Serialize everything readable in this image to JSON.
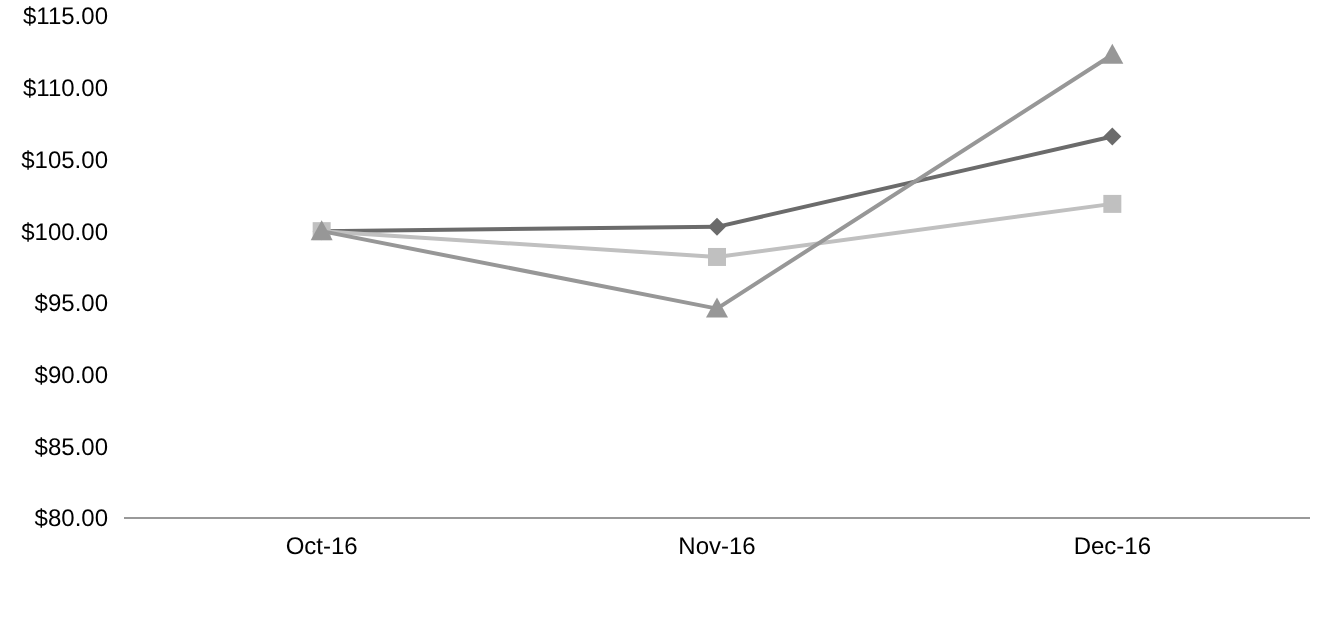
{
  "chart_data": {
    "type": "line",
    "categories": [
      "Oct-16",
      "Nov-16",
      "Dec-16"
    ],
    "series": [
      {
        "color": "#6b6b6b",
        "marker": "diamond",
        "values": [
          100,
          100.3,
          106.6
        ]
      },
      {
        "color": "#c0c0c0",
        "marker": "square",
        "values": [
          100,
          98.2,
          101.9
        ]
      },
      {
        "color": "#979797",
        "marker": "triangle",
        "values": [
          100,
          94.6,
          112.3
        ]
      }
    ],
    "ylim": [
      80,
      115
    ],
    "yticks": [
      {
        "value": 80,
        "label": "$80.00"
      },
      {
        "value": 85,
        "label": "$85.00"
      },
      {
        "value": 90,
        "label": "$90.00"
      },
      {
        "value": 95,
        "label": "$95.00"
      },
      {
        "value": 100,
        "label": "$100.00"
      },
      {
        "value": 105,
        "label": "$105.00"
      },
      {
        "value": 110,
        "label": "$110.00"
      },
      {
        "value": 115,
        "label": "$115.00"
      }
    ],
    "line_style": "solid"
  }
}
